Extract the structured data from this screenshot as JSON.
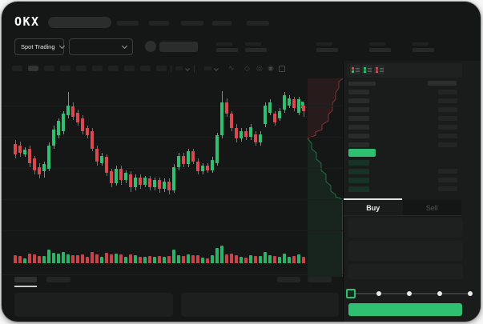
{
  "app": {
    "logo_text": "OKX"
  },
  "colors": {
    "up": "#2fbf71",
    "down": "#d9494f",
    "window_bg": "#151716",
    "panel_bg": "#1a1c1b",
    "ask_area_fill": "rgba(217,73,79,0.10)",
    "ask_line": "rgba(217,73,79,0.55)",
    "bid_area_fill": "rgba(47,191,113,0.09)",
    "bid_line": "rgba(47,191,113,0.50)"
  },
  "header": {
    "nav_placeholders": 5
  },
  "subheader": {
    "market_selector_label": "Spot Trading",
    "ticker_stats_placeholders": 5
  },
  "chart_toolbar": {
    "timeframe_placeholders": 10,
    "active_timeframe_index": 1,
    "icons": [
      "indicator-dropdown",
      "overlay-dropdown",
      "line-type-icon",
      "draw-icon",
      "camera-icon",
      "settings-icon",
      "fullscreen-icon"
    ]
  },
  "chart_data": {
    "type": "candlestick",
    "x_count": 61,
    "price_scale": "normalized 0-100 (no axis labels visible)",
    "candles": [
      [
        61,
        54,
        64,
        51
      ],
      [
        60,
        55,
        63,
        52
      ],
      [
        54,
        57,
        59,
        52
      ],
      [
        58,
        48,
        60,
        45
      ],
      [
        51,
        43,
        53,
        40
      ],
      [
        45,
        40,
        48,
        37
      ],
      [
        42,
        47,
        49,
        38
      ],
      [
        44,
        60,
        62,
        42
      ],
      [
        60,
        71,
        74,
        58
      ],
      [
        67,
        77,
        79,
        65
      ],
      [
        70,
        82,
        84,
        68
      ],
      [
        81,
        88,
        97,
        79
      ],
      [
        87,
        80,
        90,
        78
      ],
      [
        83,
        76,
        85,
        74
      ],
      [
        79,
        70,
        81,
        68
      ],
      [
        72,
        67,
        74,
        65
      ],
      [
        70,
        58,
        72,
        56
      ],
      [
        58,
        49,
        60,
        46
      ],
      [
        48,
        53,
        55,
        46
      ],
      [
        52,
        41,
        54,
        39
      ],
      [
        42,
        34,
        44,
        31
      ],
      [
        34,
        44,
        46,
        32
      ],
      [
        44,
        36,
        46,
        33
      ],
      [
        36,
        41,
        43,
        34
      ],
      [
        40,
        31,
        42,
        28
      ],
      [
        31,
        38,
        40,
        29
      ],
      [
        38,
        33,
        40,
        30
      ],
      [
        33,
        38,
        39,
        31
      ],
      [
        37,
        31,
        39,
        29
      ],
      [
        31,
        36,
        38,
        29
      ],
      [
        36,
        30,
        38,
        27
      ],
      [
        30,
        35,
        37,
        28
      ],
      [
        35,
        29,
        37,
        26
      ],
      [
        29,
        45,
        47,
        27
      ],
      [
        45,
        53,
        55,
        43
      ],
      [
        53,
        47,
        55,
        45
      ],
      [
        47,
        56,
        58,
        45
      ],
      [
        56,
        49,
        58,
        47
      ],
      [
        49,
        42,
        51,
        40
      ],
      [
        42,
        46,
        48,
        40
      ],
      [
        46,
        43,
        48,
        41
      ],
      [
        43,
        50,
        52,
        41
      ],
      [
        48,
        67,
        69,
        46
      ],
      [
        67,
        90,
        98,
        65
      ],
      [
        90,
        82,
        93,
        80
      ],
      [
        82,
        72,
        84,
        70
      ],
      [
        72,
        65,
        75,
        62
      ],
      [
        65,
        70,
        72,
        63
      ],
      [
        70,
        66,
        72,
        64
      ],
      [
        66,
        73,
        75,
        64
      ],
      [
        68,
        62,
        70,
        60
      ],
      [
        62,
        68,
        70,
        60
      ],
      [
        75,
        88,
        90,
        73
      ],
      [
        83,
        90,
        92,
        81
      ],
      [
        82,
        76,
        84,
        74
      ],
      [
        79,
        84,
        86,
        77
      ],
      [
        85,
        95,
        97,
        83
      ],
      [
        88,
        93,
        95,
        86
      ],
      [
        92,
        86,
        94,
        84
      ],
      [
        83,
        92,
        94,
        81
      ],
      [
        88,
        84,
        90,
        80
      ]
    ],
    "volumes": [
      10,
      9,
      6,
      12,
      11,
      9,
      9,
      17,
      13,
      12,
      14,
      11,
      10,
      10,
      11,
      8,
      14,
      11,
      8,
      13,
      11,
      12,
      11,
      8,
      11,
      10,
      8,
      8,
      9,
      8,
      9,
      8,
      9,
      17,
      10,
      9,
      11,
      10,
      10,
      7,
      6,
      10,
      19,
      22,
      11,
      12,
      10,
      8,
      7,
      10,
      9,
      9,
      14,
      10,
      9,
      8,
      12,
      8,
      9,
      11,
      8
    ],
    "gridlines": 5,
    "depth_overlay": {
      "ask_steps": [
        [
          46,
          2
        ],
        [
          41,
          6
        ],
        [
          41,
          14
        ],
        [
          37,
          20
        ],
        [
          37,
          28
        ],
        [
          33,
          33
        ],
        [
          33,
          42
        ],
        [
          28,
          47
        ],
        [
          28,
          55
        ],
        [
          20,
          60
        ],
        [
          20,
          66
        ],
        [
          12,
          69
        ],
        [
          12,
          73
        ],
        [
          2,
          77
        ]
      ],
      "bid_steps": [
        [
          2,
          77
        ],
        [
          7,
          83
        ],
        [
          7,
          90
        ],
        [
          13,
          95
        ],
        [
          13,
          103
        ],
        [
          19,
          108
        ],
        [
          19,
          117
        ],
        [
          25,
          122
        ],
        [
          25,
          131
        ],
        [
          31,
          136
        ],
        [
          31,
          143
        ],
        [
          37,
          147
        ],
        [
          37,
          150
        ],
        [
          43,
          152
        ],
        [
          46,
          154
        ]
      ]
    }
  },
  "order_book": {
    "view_modes": [
      "combined",
      "bids-only",
      "asks-only"
    ],
    "ask_rows": 7,
    "bid_rows": 4,
    "bid_value_rows": 3,
    "current_price_highlight": "green"
  },
  "trade_panel": {
    "tabs": [
      {
        "label": "Buy",
        "active": true
      },
      {
        "label": "Sell",
        "active": false
      }
    ],
    "form_field_placeholders": 3,
    "amount_slider": {
      "steps": 5,
      "active_step": 0
    },
    "submit_button": {
      "color": "green",
      "label": ""
    }
  },
  "bottom_bar": {
    "tab_placeholders": 2,
    "active_tab_index": 0,
    "right_placeholders": 2,
    "panel_placeholders": 2
  }
}
